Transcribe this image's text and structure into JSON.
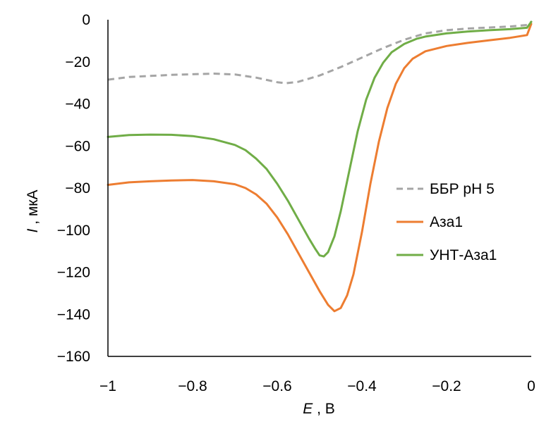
{
  "chart_data": {
    "type": "line",
    "xlabel": {
      "symbol": "E",
      "unit": " , В"
    },
    "ylabel": {
      "symbol": "I",
      "unit": " , мкА"
    },
    "xlim": [
      -1,
      0
    ],
    "ylim": [
      -160,
      0
    ],
    "x_ticks": [
      -1,
      -0.8,
      -0.6,
      -0.4,
      -0.2,
      0
    ],
    "x_tick_labels": [
      "−1",
      "−0.8",
      "−0.6",
      "−0.4",
      "−0.2",
      "0"
    ],
    "y_ticks": [
      0,
      -20,
      -40,
      -60,
      -80,
      -100,
      -120,
      -140,
      -160
    ],
    "y_tick_labels": [
      "0",
      "−20",
      "−40",
      "−60",
      "−80",
      "−100",
      "−120",
      "−140",
      "−160"
    ],
    "grid": false,
    "legend_position": "right",
    "series": [
      {
        "name": "ББР pH 5",
        "color": "#a5a5a5",
        "dash": true,
        "points": [
          [
            -1,
            -28.5
          ],
          [
            -0.95,
            -27.2
          ],
          [
            -0.9,
            -26.7
          ],
          [
            -0.85,
            -26.2
          ],
          [
            -0.8,
            -25.9
          ],
          [
            -0.75,
            -25.6
          ],
          [
            -0.7,
            -26
          ],
          [
            -0.65,
            -27.5
          ],
          [
            -0.6,
            -29.7
          ],
          [
            -0.58,
            -30.2
          ],
          [
            -0.55,
            -29.5
          ],
          [
            -0.5,
            -26.5
          ],
          [
            -0.45,
            -22.5
          ],
          [
            -0.4,
            -18
          ],
          [
            -0.35,
            -13.5
          ],
          [
            -0.3,
            -9.5
          ],
          [
            -0.25,
            -6.5
          ],
          [
            -0.2,
            -5
          ],
          [
            -0.15,
            -4.2
          ],
          [
            -0.1,
            -3.7
          ],
          [
            -0.05,
            -3.2
          ],
          [
            -0.01,
            -2.5
          ],
          [
            0,
            -1
          ]
        ]
      },
      {
        "name": "Аза1",
        "color": "#ed7d31",
        "dash": false,
        "points": [
          [
            -1,
            -78.5
          ],
          [
            -0.95,
            -77.3
          ],
          [
            -0.9,
            -76.8
          ],
          [
            -0.85,
            -76.4
          ],
          [
            -0.8,
            -76.2
          ],
          [
            -0.75,
            -76.8
          ],
          [
            -0.7,
            -78.2
          ],
          [
            -0.675,
            -80
          ],
          [
            -0.65,
            -83
          ],
          [
            -0.625,
            -87.5
          ],
          [
            -0.6,
            -94
          ],
          [
            -0.575,
            -102
          ],
          [
            -0.55,
            -111
          ],
          [
            -0.525,
            -120
          ],
          [
            -0.5,
            -129
          ],
          [
            -0.48,
            -135.5
          ],
          [
            -0.465,
            -138.5
          ],
          [
            -0.45,
            -137
          ],
          [
            -0.435,
            -131
          ],
          [
            -0.42,
            -121
          ],
          [
            -0.4,
            -101
          ],
          [
            -0.38,
            -78
          ],
          [
            -0.36,
            -58
          ],
          [
            -0.34,
            -42
          ],
          [
            -0.32,
            -30.5
          ],
          [
            -0.3,
            -23
          ],
          [
            -0.28,
            -18.5
          ],
          [
            -0.25,
            -15
          ],
          [
            -0.2,
            -12.5
          ],
          [
            -0.15,
            -11
          ],
          [
            -0.1,
            -9.8
          ],
          [
            -0.05,
            -8.6
          ],
          [
            -0.01,
            -7.3
          ],
          [
            0,
            -2
          ]
        ]
      },
      {
        "name": "УНТ-Аза1",
        "color": "#70ad47",
        "dash": false,
        "points": [
          [
            -1,
            -55.7
          ],
          [
            -0.95,
            -54.8
          ],
          [
            -0.9,
            -54.6
          ],
          [
            -0.85,
            -54.7
          ],
          [
            -0.8,
            -55.3
          ],
          [
            -0.75,
            -56.8
          ],
          [
            -0.7,
            -59.5
          ],
          [
            -0.675,
            -62
          ],
          [
            -0.65,
            -66
          ],
          [
            -0.625,
            -71
          ],
          [
            -0.6,
            -78
          ],
          [
            -0.575,
            -86
          ],
          [
            -0.55,
            -95
          ],
          [
            -0.525,
            -104
          ],
          [
            -0.51,
            -109
          ],
          [
            -0.5,
            -112
          ],
          [
            -0.49,
            -112.5
          ],
          [
            -0.48,
            -110.5
          ],
          [
            -0.465,
            -103
          ],
          [
            -0.45,
            -91
          ],
          [
            -0.43,
            -72
          ],
          [
            -0.41,
            -53
          ],
          [
            -0.39,
            -38
          ],
          [
            -0.37,
            -27.5
          ],
          [
            -0.35,
            -20.5
          ],
          [
            -0.33,
            -15.5
          ],
          [
            -0.3,
            -11.5
          ],
          [
            -0.27,
            -9
          ],
          [
            -0.25,
            -8
          ],
          [
            -0.2,
            -6.5
          ],
          [
            -0.15,
            -5.6
          ],
          [
            -0.1,
            -5
          ],
          [
            -0.05,
            -4.5
          ],
          [
            -0.01,
            -3.8
          ],
          [
            0,
            -1
          ]
        ]
      }
    ]
  }
}
